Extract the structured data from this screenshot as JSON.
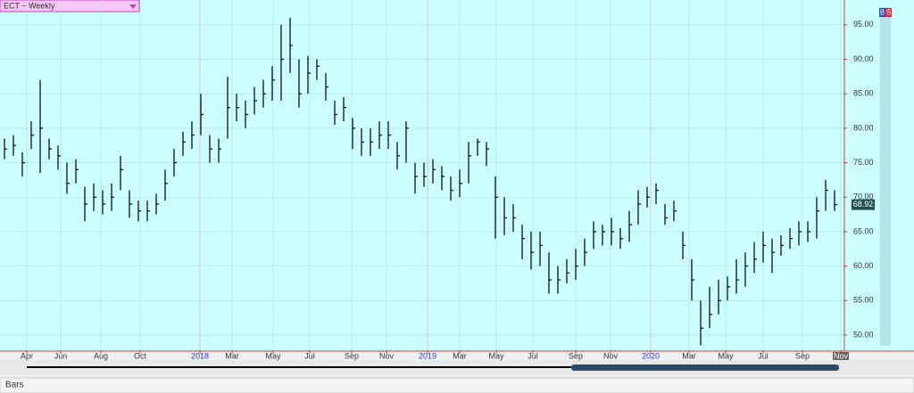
{
  "chart_data": {
    "type": "ohlc",
    "title": "ECT ~ Weekly",
    "footer": "Bars",
    "buttons": [
      "B",
      "S"
    ],
    "color": "#111111",
    "close": [
      77,
      77.5,
      75,
      79,
      80,
      77,
      76,
      72,
      74,
      69,
      70,
      69,
      70,
      74,
      69,
      68,
      68,
      69,
      72,
      75,
      78,
      79,
      82,
      77,
      77,
      83,
      83,
      82,
      84,
      85,
      87,
      90,
      92,
      85,
      88,
      89,
      86,
      82,
      83,
      80,
      78,
      78,
      79,
      79,
      76,
      80,
      73,
      73,
      74,
      73,
      71,
      72,
      76,
      78,
      77,
      70,
      67,
      67,
      64,
      62,
      63,
      58,
      58,
      59,
      60,
      62,
      65,
      65,
      65,
      64,
      66,
      69,
      70,
      71,
      67,
      68,
      63,
      58,
      51,
      53,
      55,
      57,
      58,
      60,
      61,
      63,
      62,
      63,
      64,
      65,
      65,
      68,
      71,
      68.92
    ],
    "high": [
      78.5,
      79,
      76.5,
      81,
      87,
      78.5,
      77.5,
      75,
      75.5,
      71.5,
      72,
      71,
      72,
      76,
      71,
      69.5,
      69.5,
      70.5,
      74,
      77,
      79.5,
      81,
      85,
      79,
      78.5,
      87.5,
      85,
      84,
      86,
      87,
      89,
      95,
      96,
      90,
      90.5,
      90,
      88,
      84,
      84.5,
      81.5,
      80,
      80,
      81,
      81,
      78,
      81,
      75,
      75,
      75.5,
      74.5,
      73,
      74,
      78,
      78.5,
      78,
      73,
      70,
      69,
      66,
      65,
      65,
      62,
      60,
      61,
      62.5,
      64,
      66.5,
      66,
      67,
      65.5,
      68,
      71,
      71.5,
      72,
      69,
      69.5,
      65,
      61,
      55,
      57,
      58,
      58.5,
      61,
      62,
      63.5,
      65,
      64,
      64.5,
      65.5,
      66.5,
      66.5,
      70,
      72.5,
      71
    ],
    "low": [
      75.5,
      76,
      73,
      77,
      73.5,
      75.5,
      74,
      70.5,
      72,
      66.5,
      68,
      67.5,
      68,
      71,
      67,
      66.5,
      66.5,
      67.5,
      69.5,
      73,
      76,
      77,
      79,
      75,
      75,
      78.5,
      81,
      80,
      82,
      83,
      84,
      84,
      88,
      83,
      85,
      87,
      84,
      80.5,
      81,
      77,
      76,
      76,
      77,
      77,
      74,
      75,
      70.5,
      71.5,
      72,
      71,
      69.5,
      70,
      72,
      76,
      74.5,
      64,
      64.5,
      65,
      61,
      59.5,
      60,
      56,
      56,
      57.5,
      58,
      60,
      62.5,
      63,
      63,
      62.5,
      63.5,
      66,
      68.5,
      69,
      66,
      66.5,
      61,
      55,
      48.5,
      51,
      53,
      55,
      56,
      57,
      59,
      60.5,
      59,
      61.5,
      62.5,
      63,
      63.5,
      64,
      68,
      68
    ],
    "last_value": {
      "value": 68.92,
      "label": "68.92"
    },
    "ylim": [
      47.8,
      98.6
    ],
    "yticks": [
      {
        "value": 50,
        "label": "50.00"
      },
      {
        "value": 55,
        "label": "55.00"
      },
      {
        "value": 60,
        "label": "60.00"
      },
      {
        "value": 65,
        "label": "65.00"
      },
      {
        "value": 70,
        "label": "70.00"
      },
      {
        "value": 75,
        "label": "75.00"
      },
      {
        "value": 80,
        "label": "80.00"
      },
      {
        "value": 85,
        "label": "85.00"
      },
      {
        "value": 90,
        "label": "90.00"
      },
      {
        "value": 95,
        "label": "95.00"
      }
    ],
    "xlim": [
      -0.5,
      94
    ],
    "xticks": [
      {
        "value": 2.5,
        "label": "Apr"
      },
      {
        "value": 6.3,
        "label": "Jun"
      },
      {
        "value": 10.8,
        "label": "Aug"
      },
      {
        "value": 15.2,
        "label": "Oct"
      },
      {
        "value": 21.9,
        "label": "2018"
      },
      {
        "value": 25.5,
        "label": "Mar"
      },
      {
        "value": 30.1,
        "label": "May"
      },
      {
        "value": 34.2,
        "label": "Jul"
      },
      {
        "value": 38.9,
        "label": "Sep"
      },
      {
        "value": 42.8,
        "label": "Nov"
      },
      {
        "value": 47.4,
        "label": "2019"
      },
      {
        "value": 51,
        "label": "Mar"
      },
      {
        "value": 55.1,
        "label": "May"
      },
      {
        "value": 59.2,
        "label": "Jul"
      },
      {
        "value": 64,
        "label": "Sep"
      },
      {
        "value": 67.9,
        "label": "Nov"
      },
      {
        "value": 72.4,
        "label": "2020"
      },
      {
        "value": 76.7,
        "label": "Mar"
      },
      {
        "value": 80.8,
        "label": "May"
      },
      {
        "value": 85,
        "label": "Jul"
      },
      {
        "value": 89.4,
        "label": "Sep"
      },
      {
        "value": 93.7,
        "label": "Nov"
      }
    ],
    "grid": true
  }
}
